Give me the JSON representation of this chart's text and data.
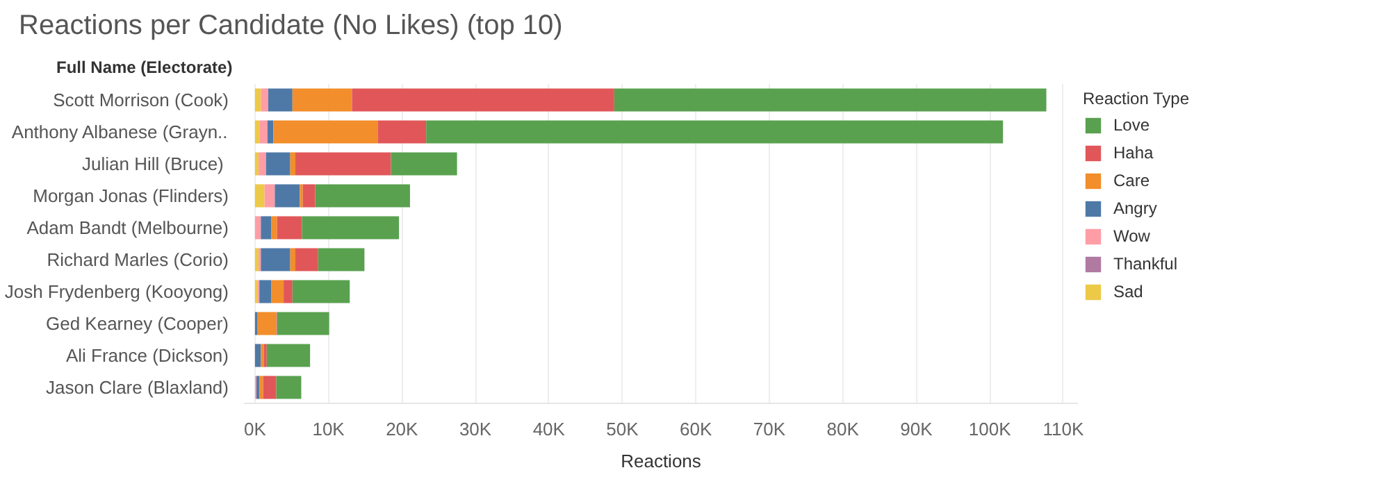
{
  "chart_data": {
    "type": "bar",
    "orientation": "horizontal",
    "stacked": true,
    "title": "Reactions per Candidate (No Likes) (top 10)",
    "ylabel": "Full Name (Electorate)",
    "xlabel": "Reactions",
    "legend_title": "Reaction Type",
    "legend": "right",
    "grid": "x",
    "categories": [
      "Scott Morrison (Cook)",
      "Anthony Albanese (Grayn..",
      "Julian  Hill (Bruce)",
      "Morgan Jonas (Flinders)",
      "Adam Bandt (Melbourne)",
      "Richard Marles (Corio)",
      "Josh Frydenberg (Kooyong)",
      "Ged Kearney (Cooper)",
      "Ali France (Dickson)",
      "Jason Clare (Blaxland)"
    ],
    "series": [
      {
        "name": "Sad",
        "color": "#edc948",
        "values": [
          800,
          600,
          500,
          1300,
          0,
          500,
          400,
          0,
          0,
          0
        ]
      },
      {
        "name": "Thankful",
        "color": "#b07aa1",
        "values": [
          0,
          0,
          0,
          0,
          0,
          0,
          0,
          0,
          0,
          0
        ]
      },
      {
        "name": "Wow",
        "color": "#ff9da7",
        "values": [
          1000,
          1100,
          1000,
          1400,
          800,
          300,
          200,
          0,
          0,
          200
        ]
      },
      {
        "name": "Angry",
        "color": "#4e79a7",
        "values": [
          3300,
          800,
          3300,
          3400,
          1400,
          4000,
          1600,
          300,
          800,
          400
        ]
      },
      {
        "name": "Care",
        "color": "#f28e2b",
        "values": [
          8100,
          14200,
          700,
          400,
          800,
          700,
          1700,
          2600,
          400,
          500
        ]
      },
      {
        "name": "Haha",
        "color": "#e15759",
        "values": [
          35700,
          6600,
          13000,
          1700,
          3400,
          3100,
          1200,
          100,
          400,
          1800
        ]
      },
      {
        "name": "Love",
        "color": "#59a14f",
        "values": [
          58800,
          78500,
          9000,
          12900,
          13200,
          6300,
          7800,
          7100,
          5900,
          3400
        ]
      }
    ],
    "xlim": [
      -1500,
      112000
    ],
    "xticks": [
      {
        "value": 0,
        "label": "0K"
      },
      {
        "value": 10000,
        "label": "10K"
      },
      {
        "value": 20000,
        "label": "20K"
      },
      {
        "value": 30000,
        "label": "30K"
      },
      {
        "value": 40000,
        "label": "40K"
      },
      {
        "value": 50000,
        "label": "50K"
      },
      {
        "value": 60000,
        "label": "60K"
      },
      {
        "value": 70000,
        "label": "70K"
      },
      {
        "value": 80000,
        "label": "80K"
      },
      {
        "value": 90000,
        "label": "90K"
      },
      {
        "value": 100000,
        "label": "100K"
      },
      {
        "value": 110000,
        "label": "110K"
      }
    ]
  }
}
